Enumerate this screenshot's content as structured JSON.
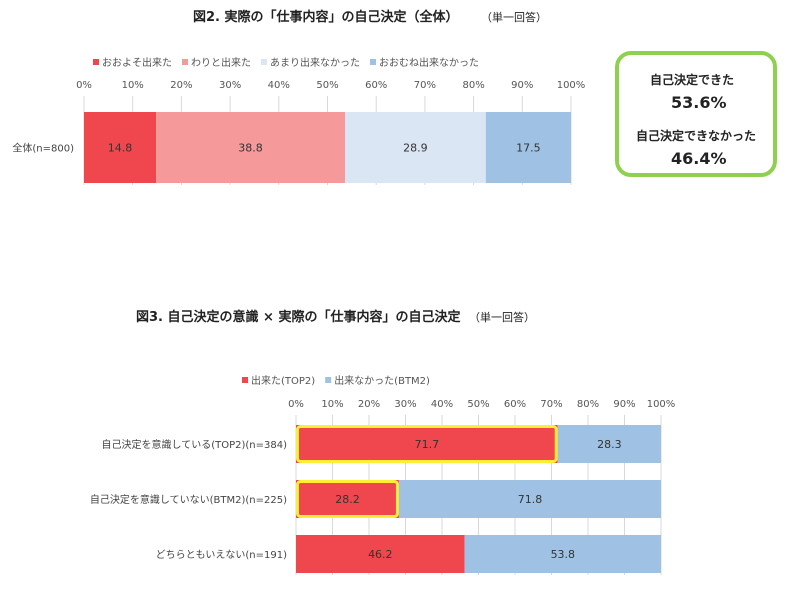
{
  "figure2": {
    "title": "図2. 実際の「仕事内容」の自己決定（全体）",
    "note": "（単一回答）"
  },
  "figure3": {
    "title": "図3. 自己決定の意識 × 実際の「仕事内容」の自己決定",
    "note": "（単一回答）"
  },
  "summary": {
    "can_label": "自己決定できた",
    "can_value": "53.6%",
    "cannot_label": "自己決定できなかった",
    "cannot_value": "46.4%",
    "border_color": "#8fd14f"
  },
  "chart_data": [
    {
      "type": "bar",
      "orientation": "horizontal",
      "stacked": true,
      "title": "図2. 実際の「仕事内容」の自己決定（全体）",
      "xlim": [
        0,
        100
      ],
      "x_ticks": [
        "0%",
        "10%",
        "20%",
        "30%",
        "40%",
        "50%",
        "60%",
        "70%",
        "80%",
        "90%",
        "100%"
      ],
      "categories": [
        "全体(n=800)"
      ],
      "series": [
        {
          "name": "おおよそ出来た",
          "values": [
            14.8
          ],
          "color": "#f0474f"
        },
        {
          "name": "わりと出来た",
          "values": [
            38.8
          ],
          "color": "#f6999b"
        },
        {
          "name": "あまり出来なかった",
          "values": [
            28.9
          ],
          "color": "#dbe6f4"
        },
        {
          "name": "おおむね出来なかった",
          "values": [
            17.5
          ],
          "color": "#9fc2e4"
        }
      ],
      "legend": "top",
      "grid": true
    },
    {
      "type": "bar",
      "orientation": "horizontal",
      "stacked": true,
      "title": "図3. 自己決定の意識 × 実際の「仕事内容」の自己決定",
      "xlim": [
        0,
        100
      ],
      "x_ticks": [
        "0%",
        "10%",
        "20%",
        "30%",
        "40%",
        "50%",
        "60%",
        "70%",
        "80%",
        "90%",
        "100%"
      ],
      "categories": [
        "自己決定を意識している(TOP2)(n=384)",
        "自己決定を意識していない(BTM2)(n=225)",
        "どちらともいえない(n=191)"
      ],
      "series": [
        {
          "name": "出来た(TOP2)",
          "values": [
            71.7,
            28.2,
            46.2
          ],
          "color": "#f0474f"
        },
        {
          "name": "出来なかった(BTM2)",
          "values": [
            28.3,
            71.8,
            53.8
          ],
          "color": "#9fc2e4"
        }
      ],
      "highlighted": [
        [
          0,
          0
        ],
        [
          1,
          0
        ]
      ],
      "highlight_color": "#ffee33",
      "legend": "top",
      "grid": true
    }
  ]
}
